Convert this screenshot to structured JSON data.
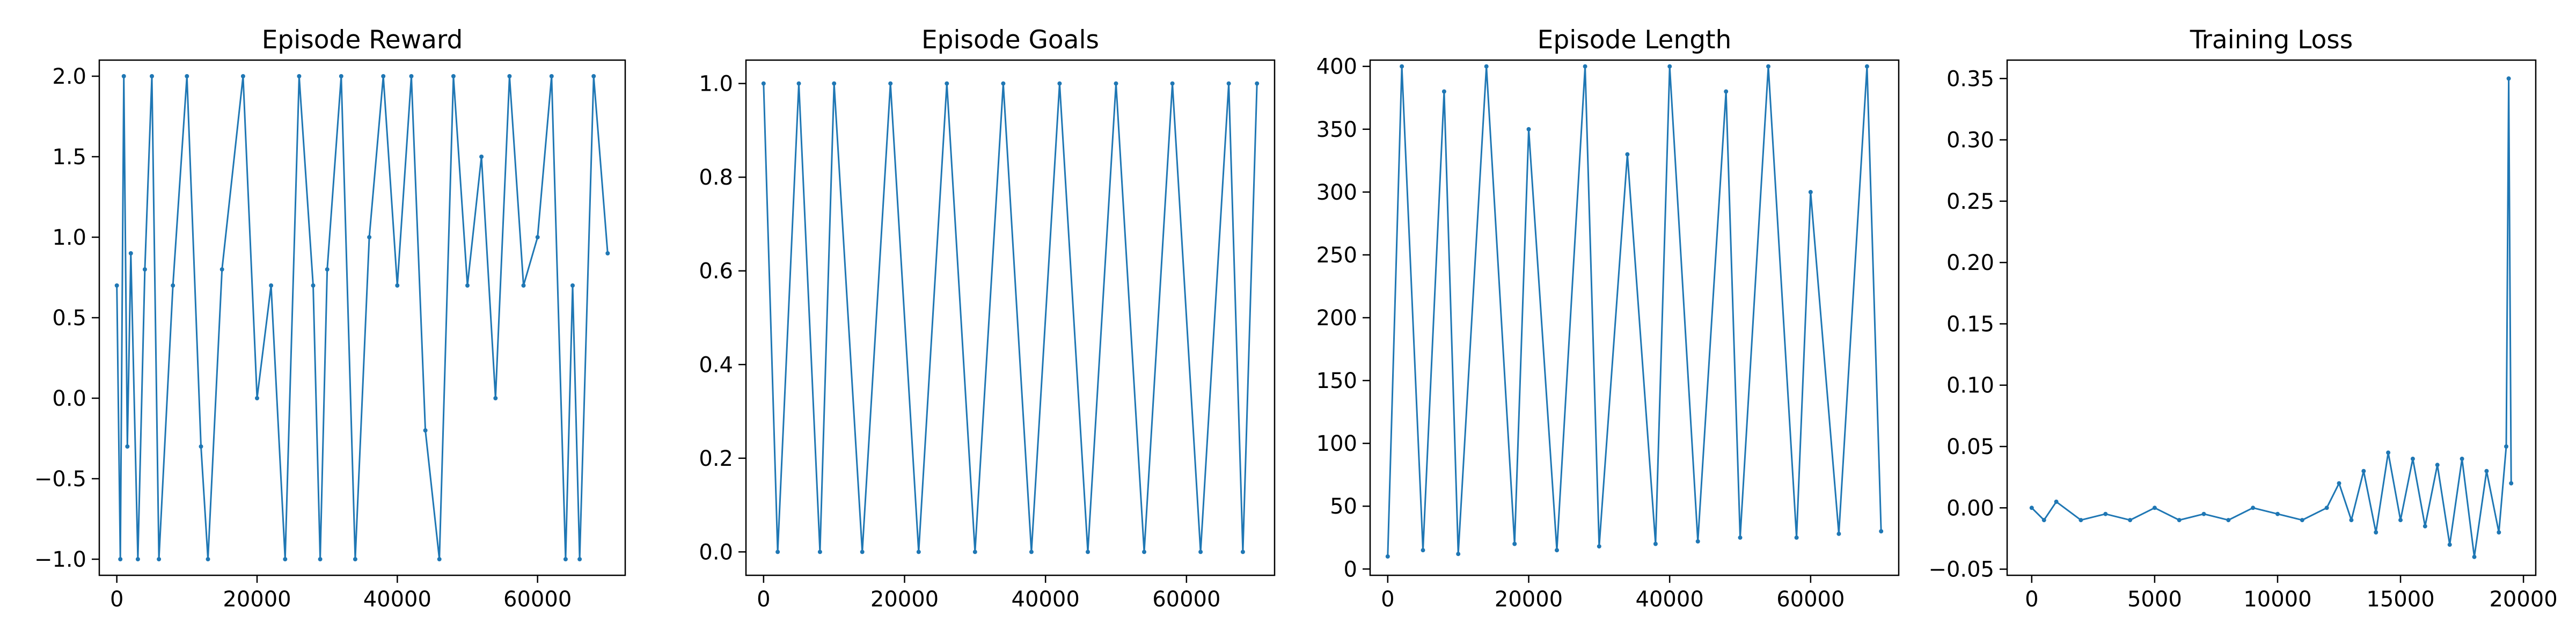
{
  "colors": {
    "series": "#1f77b4",
    "axis": "#000000",
    "background": "#ffffff"
  },
  "chart_data": [
    {
      "type": "line",
      "title": "Episode Reward",
      "xlim": [
        -2500,
        72500
      ],
      "ylim": [
        -1.1,
        2.1
      ],
      "xticks": [
        0,
        20000,
        40000,
        60000
      ],
      "xtick_labels": [
        "0",
        "20000",
        "40000",
        "60000"
      ],
      "yticks": [
        -1.0,
        -0.5,
        0.0,
        0.5,
        1.0,
        1.5,
        2.0
      ],
      "ytick_labels": [
        "−1.0",
        "−0.5",
        "0.0",
        "0.5",
        "1.0",
        "1.5",
        "2.0"
      ],
      "grid": false,
      "series": [
        {
          "x": [
            0,
            500,
            1000,
            1500,
            2000,
            3000,
            4000,
            5000,
            6000,
            8000,
            10000,
            12000,
            13000,
            15000,
            18000,
            20000,
            22000,
            24000,
            26000,
            28000,
            29000,
            30000,
            32000,
            34000,
            36000,
            38000,
            40000,
            42000,
            44000,
            46000,
            48000,
            50000,
            52000,
            54000,
            56000,
            58000,
            60000,
            62000,
            64000,
            65000,
            66000,
            68000,
            70000
          ],
          "values": [
            0.7,
            -1.0,
            2.0,
            -0.3,
            0.9,
            -1.0,
            0.8,
            2.0,
            -1.0,
            0.7,
            2.0,
            -0.3,
            -1.0,
            0.8,
            2.0,
            0.0,
            0.7,
            -1.0,
            2.0,
            0.7,
            -1.0,
            0.8,
            2.0,
            -1.0,
            1.0,
            2.0,
            0.7,
            2.0,
            -0.2,
            -1.0,
            2.0,
            0.7,
            1.5,
            0.0,
            2.0,
            0.7,
            1.0,
            2.0,
            -1.0,
            0.7,
            -1.0,
            2.0,
            0.9
          ]
        }
      ]
    },
    {
      "type": "line",
      "title": "Episode Goals",
      "xlim": [
        -2500,
        72500
      ],
      "ylim": [
        -0.05,
        1.05
      ],
      "xticks": [
        0,
        20000,
        40000,
        60000
      ],
      "xtick_labels": [
        "0",
        "20000",
        "40000",
        "60000"
      ],
      "yticks": [
        0.0,
        0.2,
        0.4,
        0.6,
        0.8,
        1.0
      ],
      "ytick_labels": [
        "0.0",
        "0.2",
        "0.4",
        "0.6",
        "0.8",
        "1.0"
      ],
      "grid": false,
      "series": [
        {
          "x": [
            0,
            2000,
            5000,
            8000,
            10000,
            14000,
            18000,
            22000,
            26000,
            30000,
            34000,
            38000,
            42000,
            46000,
            50000,
            54000,
            58000,
            62000,
            66000,
            68000,
            70000
          ],
          "values": [
            1,
            0,
            1,
            0,
            1,
            0,
            1,
            0,
            1,
            0,
            1,
            0,
            1,
            0,
            1,
            0,
            1,
            0,
            1,
            0,
            1
          ]
        }
      ]
    },
    {
      "type": "line",
      "title": "Episode Length",
      "xlim": [
        -2500,
        72500
      ],
      "ylim": [
        -5,
        405
      ],
      "xticks": [
        0,
        20000,
        40000,
        60000
      ],
      "xtick_labels": [
        "0",
        "20000",
        "40000",
        "60000"
      ],
      "yticks": [
        0,
        50,
        100,
        150,
        200,
        250,
        300,
        350,
        400
      ],
      "ytick_labels": [
        "0",
        "50",
        "100",
        "150",
        "200",
        "250",
        "300",
        "350",
        "400"
      ],
      "grid": false,
      "series": [
        {
          "x": [
            0,
            2000,
            5000,
            8000,
            10000,
            14000,
            18000,
            20000,
            24000,
            28000,
            30000,
            34000,
            38000,
            40000,
            44000,
            48000,
            50000,
            54000,
            58000,
            60000,
            64000,
            68000,
            70000
          ],
          "values": [
            10,
            400,
            15,
            380,
            12,
            400,
            20,
            350,
            15,
            400,
            18,
            330,
            20,
            400,
            22,
            380,
            25,
            400,
            25,
            300,
            28,
            400,
            30
          ]
        }
      ]
    },
    {
      "type": "line",
      "title": "Training Loss",
      "xlim": [
        -1000,
        20500
      ],
      "ylim": [
        -0.055,
        0.365
      ],
      "xticks": [
        0,
        5000,
        10000,
        15000,
        20000
      ],
      "xtick_labels": [
        "0",
        "5000",
        "10000",
        "15000",
        "20000"
      ],
      "yticks": [
        -0.05,
        0.0,
        0.05,
        0.1,
        0.15,
        0.2,
        0.25,
        0.3,
        0.35
      ],
      "ytick_labels": [
        "−0.05",
        "0.00",
        "0.05",
        "0.10",
        "0.15",
        "0.20",
        "0.25",
        "0.30",
        "0.35"
      ],
      "grid": false,
      "series": [
        {
          "x": [
            0,
            500,
            1000,
            2000,
            3000,
            4000,
            5000,
            6000,
            7000,
            8000,
            9000,
            10000,
            11000,
            12000,
            12500,
            13000,
            13500,
            14000,
            14500,
            15000,
            15500,
            16000,
            16500,
            17000,
            17500,
            18000,
            18500,
            19000,
            19300,
            19400,
            19500
          ],
          "values": [
            0.0,
            -0.01,
            0.005,
            -0.01,
            -0.005,
            -0.01,
            0.0,
            -0.01,
            -0.005,
            -0.01,
            0.0,
            -0.005,
            -0.01,
            0.0,
            0.02,
            -0.01,
            0.03,
            -0.02,
            0.045,
            -0.01,
            0.04,
            -0.015,
            0.035,
            -0.03,
            0.04,
            -0.04,
            0.03,
            -0.02,
            0.05,
            0.35,
            0.02
          ]
        }
      ]
    }
  ]
}
